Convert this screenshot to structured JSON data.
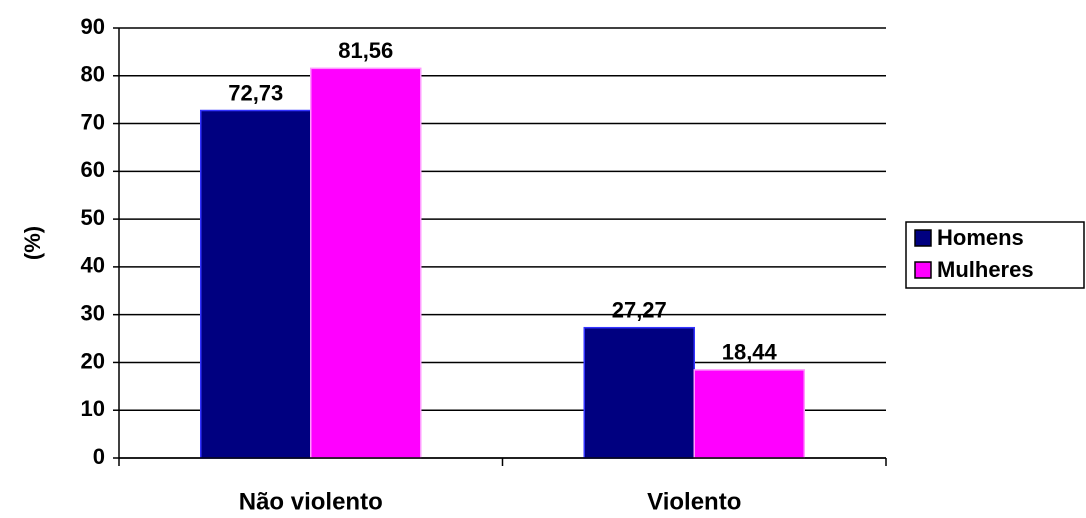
{
  "chart_data": {
    "type": "bar",
    "y_label": "(%)",
    "categories": [
      "Não violento",
      "Violento"
    ],
    "series": [
      {
        "name": "Homens",
        "color": "#000080",
        "values": [
          72.73,
          27.27
        ],
        "value_labels": [
          "72,73",
          "27,27"
        ]
      },
      {
        "name": "Mulheres",
        "color": "#ff00ff",
        "values": [
          81.56,
          18.44
        ],
        "value_labels": [
          "81,56",
          "18,44"
        ]
      }
    ],
    "ylim": [
      0,
      90
    ],
    "yticks": [
      0,
      10,
      20,
      30,
      40,
      50,
      60,
      70,
      80,
      90
    ],
    "grid": true,
    "legend": "right"
  }
}
